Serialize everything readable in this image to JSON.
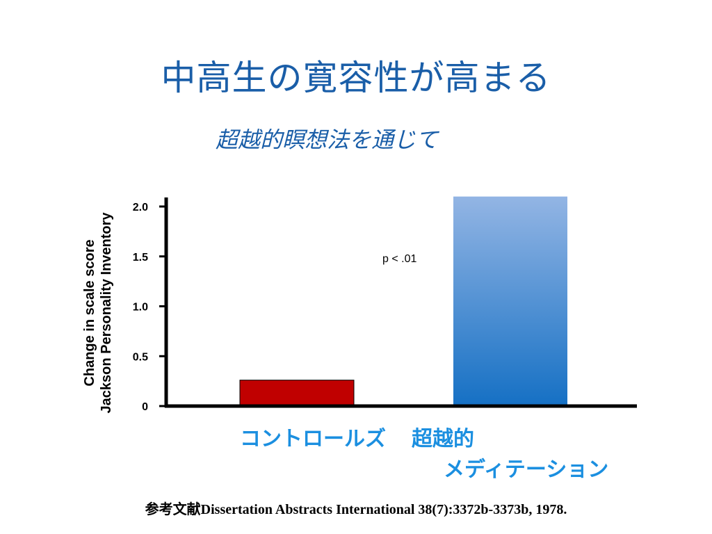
{
  "slide": {
    "title": "中高生の寛容性が高まる",
    "subtitle": "超越的瞑想法を通じて",
    "reference": "参考文献Dissertation Abstracts International 38(7):3372b-3373b, 1978."
  },
  "chart_data": {
    "type": "bar",
    "categories": [
      "コントロールズ",
      "超越的 メディテーション"
    ],
    "category_lines": [
      [
        "コントロールズ"
      ],
      [
        "超越的",
        "メディテーション"
      ]
    ],
    "values": [
      0.26,
      2.1
    ],
    "colors": [
      "#c00000",
      "#1570c4"
    ],
    "ylabel_lines": [
      "Change in scale score",
      "Jackson Personality Inventory"
    ],
    "yticks": [
      0,
      0.5,
      1.0,
      1.5,
      2.0
    ],
    "ytick_labels": [
      "0",
      "0.5",
      "1.0",
      "1.5",
      "2.0"
    ],
    "ylim": [
      0,
      2.1
    ],
    "annotation": "p < .01",
    "grid": false
  }
}
